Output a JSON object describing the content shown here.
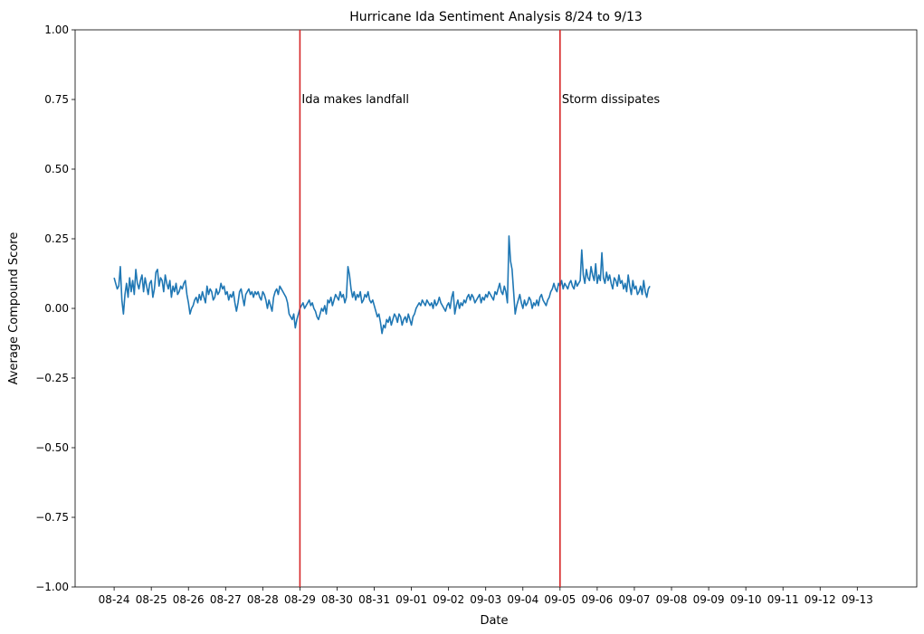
{
  "chart_data": {
    "type": "line",
    "title": "Hurricane Ida Sentiment Analysis 8/24 to 9/13",
    "xlabel": "Date",
    "ylabel": "Average Compound Score",
    "ylim": [
      -1.0,
      1.0
    ],
    "yticks": [
      "1.00",
      "0.75",
      "0.50",
      "0.25",
      "0.00",
      "−0.25",
      "−0.50",
      "−0.75",
      "−1.00"
    ],
    "yticks_values": [
      1.0,
      0.75,
      0.5,
      0.25,
      0.0,
      -0.25,
      -0.5,
      -0.75,
      -1.0
    ],
    "xticks": [
      "08-24",
      "08-25",
      "08-26",
      "08-27",
      "08-28",
      "08-29",
      "08-30",
      "08-31",
      "09-01",
      "09-02",
      "09-03",
      "09-04",
      "09-05",
      "09-06",
      "09-07",
      "09-08",
      "09-09",
      "09-10",
      "09-11",
      "09-12",
      "09-13"
    ],
    "x_range_days": [
      -1.05,
      21.6
    ],
    "grid": false,
    "series": [
      {
        "color": "#1f77b4",
        "x_start_date": "08-24",
        "step_days": 0.04167,
        "values": [
          0.11,
          0.09,
          0.07,
          0.08,
          0.15,
          0.03,
          -0.02,
          0.05,
          0.09,
          0.04,
          0.11,
          0.06,
          0.1,
          0.05,
          0.14,
          0.09,
          0.07,
          0.1,
          0.12,
          0.06,
          0.11,
          0.08,
          0.05,
          0.09,
          0.1,
          0.04,
          0.07,
          0.13,
          0.14,
          0.08,
          0.11,
          0.1,
          0.06,
          0.12,
          0.09,
          0.07,
          0.1,
          0.04,
          0.08,
          0.06,
          0.09,
          0.05,
          0.06,
          0.08,
          0.07,
          0.09,
          0.1,
          0.05,
          0.02,
          -0.02,
          0.0,
          0.01,
          0.03,
          0.04,
          0.02,
          0.05,
          0.03,
          0.06,
          0.04,
          0.02,
          0.08,
          0.05,
          0.07,
          0.06,
          0.03,
          0.04,
          0.07,
          0.05,
          0.06,
          0.09,
          0.07,
          0.08,
          0.05,
          0.06,
          0.03,
          0.05,
          0.04,
          0.06,
          0.02,
          -0.01,
          0.02,
          0.06,
          0.07,
          0.04,
          0.01,
          0.05,
          0.06,
          0.07,
          0.05,
          0.06,
          0.04,
          0.06,
          0.05,
          0.06,
          0.04,
          0.03,
          0.06,
          0.05,
          0.03,
          0.0,
          0.03,
          0.01,
          -0.01,
          0.04,
          0.06,
          0.07,
          0.05,
          0.08,
          0.07,
          0.06,
          0.05,
          0.04,
          0.02,
          -0.02,
          -0.03,
          -0.04,
          -0.02,
          -0.07,
          -0.04,
          -0.02,
          0.0,
          0.01,
          0.02,
          0.0,
          0.01,
          0.02,
          0.03,
          0.01,
          0.02,
          0.0,
          -0.01,
          -0.03,
          -0.04,
          -0.02,
          0.0,
          -0.01,
          0.01,
          -0.02,
          0.03,
          0.02,
          0.04,
          0.01,
          0.03,
          0.05,
          0.04,
          0.03,
          0.06,
          0.04,
          0.05,
          0.02,
          0.04,
          0.15,
          0.12,
          0.07,
          0.04,
          0.06,
          0.03,
          0.05,
          0.04,
          0.06,
          0.02,
          0.03,
          0.05,
          0.04,
          0.06,
          0.03,
          0.02,
          0.03,
          0.01,
          -0.01,
          -0.03,
          -0.02,
          -0.05,
          -0.09,
          -0.06,
          -0.07,
          -0.04,
          -0.05,
          -0.03,
          -0.06,
          -0.04,
          -0.02,
          -0.03,
          -0.05,
          -0.02,
          -0.03,
          -0.06,
          -0.04,
          -0.03,
          -0.05,
          -0.02,
          -0.04,
          -0.06,
          -0.03,
          -0.02,
          0.0,
          0.01,
          0.02,
          0.01,
          0.03,
          0.02,
          0.01,
          0.03,
          0.02,
          0.01,
          0.02,
          0.0,
          0.03,
          0.01,
          0.02,
          0.04,
          0.02,
          0.01,
          0.0,
          -0.01,
          0.01,
          0.02,
          0.0,
          0.04,
          0.06,
          -0.02,
          0.01,
          0.03,
          0.0,
          0.02,
          0.01,
          0.03,
          0.02,
          0.04,
          0.05,
          0.03,
          0.05,
          0.04,
          0.02,
          0.03,
          0.04,
          0.05,
          0.02,
          0.04,
          0.03,
          0.05,
          0.04,
          0.06,
          0.05,
          0.04,
          0.03,
          0.06,
          0.05,
          0.07,
          0.09,
          0.06,
          0.05,
          0.08,
          0.06,
          0.02,
          0.26,
          0.17,
          0.14,
          0.06,
          -0.02,
          0.01,
          0.03,
          0.05,
          0.02,
          0.0,
          0.03,
          0.01,
          0.02,
          0.04,
          0.03,
          0.0,
          0.02,
          0.01,
          0.03,
          0.01,
          0.04,
          0.05,
          0.03,
          0.02,
          0.01,
          0.03,
          0.04,
          0.06,
          0.07,
          0.09,
          0.07,
          0.06,
          0.09,
          0.08,
          0.1,
          0.07,
          0.09,
          0.08,
          0.07,
          0.09,
          0.1,
          0.08,
          0.07,
          0.1,
          0.08,
          0.09,
          0.1,
          0.21,
          0.12,
          0.09,
          0.14,
          0.11,
          0.1,
          0.15,
          0.12,
          0.1,
          0.16,
          0.09,
          0.12,
          0.1,
          0.2,
          0.11,
          0.09,
          0.13,
          0.1,
          0.12,
          0.09,
          0.07,
          0.11,
          0.1,
          0.08,
          0.12,
          0.09,
          0.1,
          0.07,
          0.09,
          0.06,
          0.12,
          0.08,
          0.05,
          0.1,
          0.07,
          0.08,
          0.05,
          0.06,
          0.08,
          0.05,
          0.1,
          0.06,
          0.04,
          0.07,
          0.08
        ]
      }
    ],
    "vlines": [
      {
        "x": "08-29",
        "color": "#d62728",
        "label": "Ida makes landfall",
        "label_y": 0.75
      },
      {
        "x": "09-05",
        "color": "#d62728",
        "label": "Storm dissipates",
        "label_y": 0.75
      }
    ]
  }
}
